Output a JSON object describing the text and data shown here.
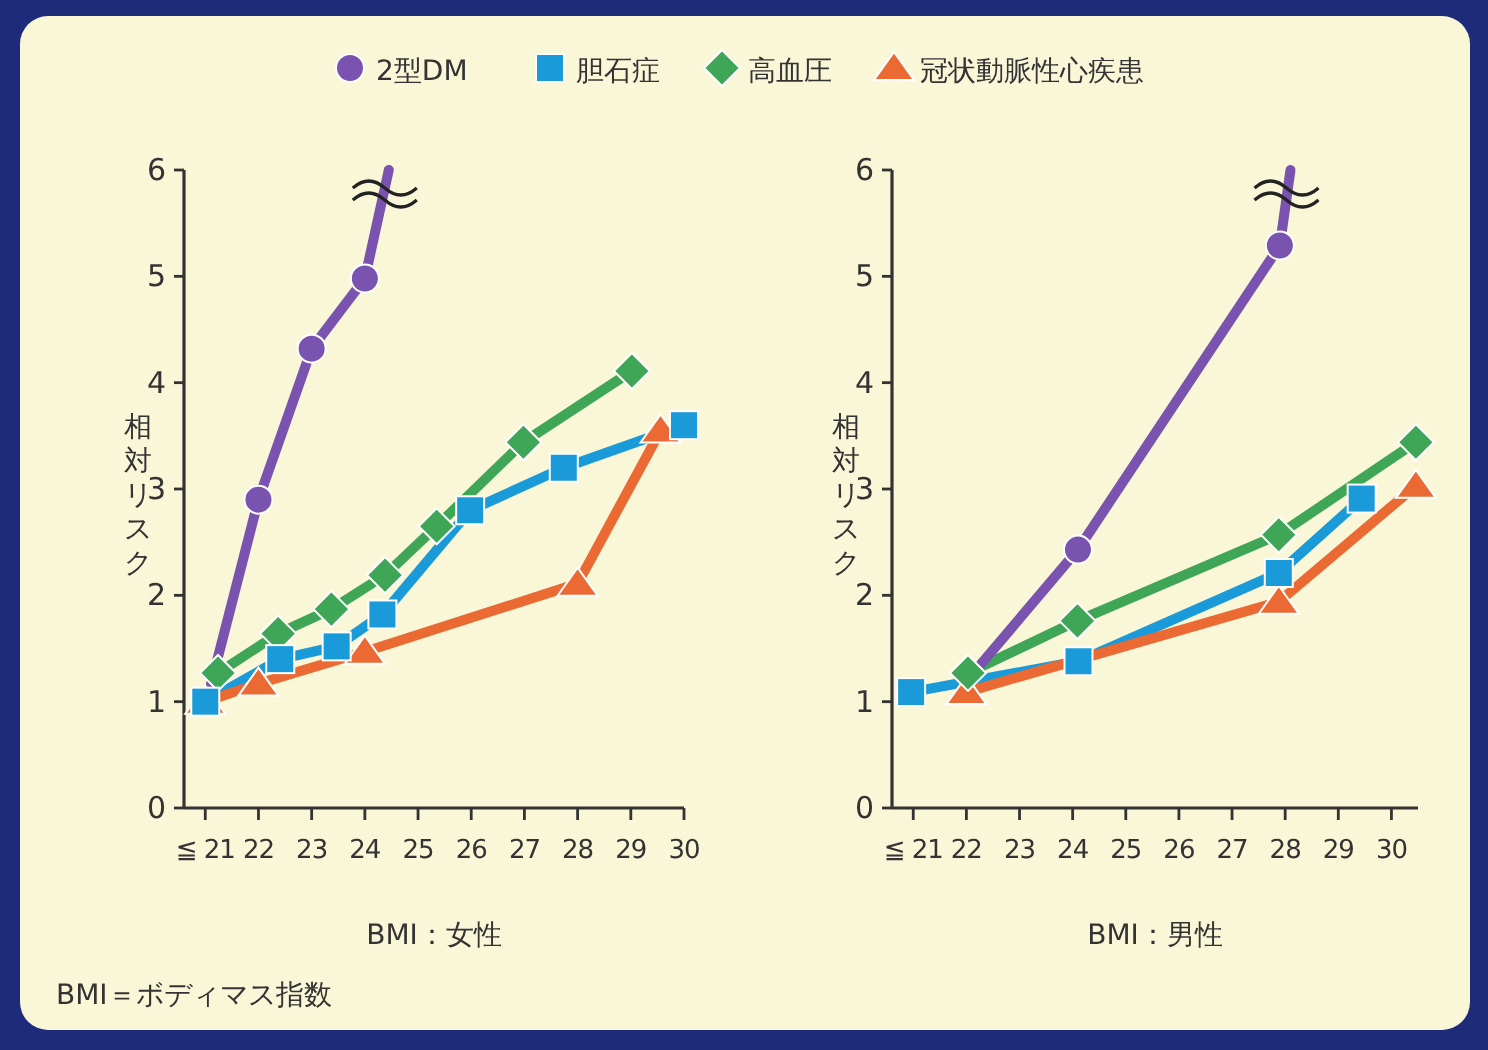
{
  "chart_data": [
    {
      "type": "line",
      "xlabel": "BMI：女性",
      "ylabel": "相対リスク",
      "legend": "top",
      "xlim": [
        20.6,
        30
      ],
      "ylim": [
        0,
        6
      ],
      "xticks": [
        {
          "value": 21,
          "label": "≦ 21"
        },
        22,
        23,
        24,
        25,
        26,
        27,
        28,
        29,
        30
      ],
      "yticks": [
        0,
        1,
        2,
        3,
        4,
        5,
        6
      ],
      "grid": false,
      "annotations": [
        "BMI＝ボディマス指数"
      ],
      "series": [
        {
          "name": "2型DM",
          "color": "#7a52b0",
          "marker": "circle",
          "x": [
            22,
            23,
            24
          ],
          "values": [
            2.9,
            4.32,
            4.98
          ]
        },
        {
          "name": "胆石症",
          "color": "#1a9ad8",
          "marker": "square",
          "x": [
            21,
            22.41,
            23.47,
            24.33,
            25.98,
            27.74,
            30
          ],
          "values": [
            1.0,
            1.4,
            1.52,
            1.82,
            2.8,
            3.2,
            3.6
          ]
        },
        {
          "name": "高血圧",
          "color": "#3fa557",
          "marker": "diamond",
          "x": [
            21.24,
            22.37,
            23.37,
            24.38,
            25.35,
            26.98,
            29.02
          ],
          "values": [
            1.27,
            1.64,
            1.87,
            2.19,
            2.65,
            3.44,
            4.11
          ]
        },
        {
          "name": "冠状動脈性心疾患",
          "color": "#eb6a34",
          "marker": "triangle",
          "x": [
            21,
            22,
            24,
            28,
            29.56
          ],
          "values": [
            1.0,
            1.17,
            1.47,
            2.11,
            3.55
          ]
        },
        {
          "type": "line",
          "color": "#7a52b0",
          "x": [
            21.1,
            22
          ],
          "values": [
            1.15,
            2.9
          ]
        },
        {
          "type": "line",
          "color": "#7a52b0",
          "x": [
            24,
            24.45
          ],
          "values": [
            4.98,
            6.0
          ]
        }
      ]
    },
    {
      "type": "line",
      "xlabel": "BMI：男性",
      "ylabel": "相対リスク",
      "xlim": [
        20.6,
        30.5
      ],
      "ylim": [
        0,
        6
      ],
      "xticks": [
        {
          "value": 21,
          "label": "≦ 21"
        },
        22,
        23,
        24,
        25,
        26,
        27,
        28,
        29,
        30
      ],
      "yticks": [
        0,
        1,
        2,
        3,
        4,
        5,
        6
      ],
      "grid": false,
      "series": [
        {
          "color": "#7a52b0",
          "marker": "circle",
          "x": [
            24.1,
            27.9
          ],
          "values": [
            2.43,
            5.29
          ]
        },
        {
          "color": "#1a9ad8",
          "marker": "square",
          "x": [
            20.96,
            24.11,
            27.88,
            29.44
          ],
          "values": [
            1.09,
            1.38,
            2.21,
            2.91
          ]
        },
        {
          "color": "#3fa557",
          "marker": "diamond",
          "x": [
            22.03,
            24.09,
            27.88,
            30.46
          ],
          "values": [
            1.27,
            1.76,
            2.57,
            3.44
          ]
        },
        {
          "color": "#eb6a34",
          "marker": "triangle",
          "x": [
            22.0,
            27.88,
            30.46
          ],
          "values": [
            1.09,
            1.94,
            3.03
          ]
        },
        {
          "type": "line",
          "color": "#7a52b0",
          "x": [
            22.1,
            24.1
          ],
          "values": [
            1.25,
            2.43
          ]
        },
        {
          "type": "line",
          "color": "#7a52b0",
          "x": [
            27.9,
            28.1
          ],
          "values": [
            5.29,
            6.0
          ]
        }
      ]
    }
  ]
}
